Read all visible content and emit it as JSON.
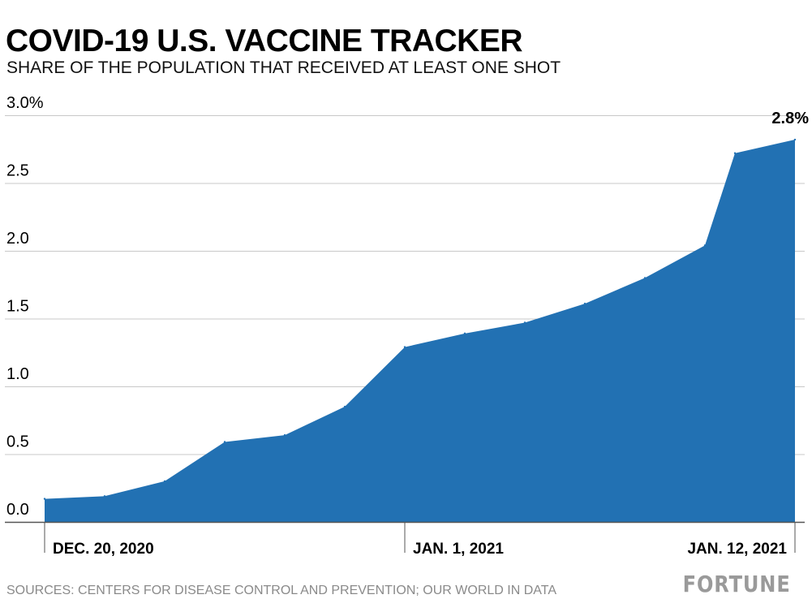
{
  "header": {
    "title": "COVID-19 U.S. VACCINE TRACKER",
    "subtitle": "SHARE OF THE POPULATION THAT RECEIVED AT LEAST ONE SHOT"
  },
  "footer": {
    "source": "SOURCES: CENTERS FOR DISEASE CONTROL AND PREVENTION; OUR WORLD IN DATA",
    "logo": "FORTUNE"
  },
  "colors": {
    "area": "#2271b3",
    "grid": "#c8c8c8",
    "axis": "#555555",
    "text": "#000000",
    "muted": "#8a8a8a"
  },
  "chart_data": {
    "type": "area",
    "x": [
      "2020-12-19",
      "2020-12-21",
      "2020-12-23",
      "2020-12-25",
      "2020-12-27",
      "2020-12-29",
      "2020-12-31",
      "2021-01-02",
      "2021-01-04",
      "2021-01-06",
      "2021-01-08",
      "2021-01-10",
      "2021-01-11",
      "2021-01-13"
    ],
    "values": [
      0.17,
      0.19,
      0.3,
      0.59,
      0.64,
      0.85,
      1.29,
      1.39,
      1.47,
      1.61,
      1.8,
      2.04,
      2.72,
      2.82
    ],
    "ylim": [
      0,
      3
    ],
    "yticks": [
      "3.0%",
      "2.5",
      "2.0",
      "1.5",
      "1.0",
      "0.5",
      "0.0"
    ],
    "ytick_values": [
      3,
      2.5,
      2,
      1.5,
      1,
      0.5,
      0
    ],
    "xticks": [
      {
        "date": "2020-12-19",
        "label": "DEC. 20, 2020"
      },
      {
        "date": "2020-12-31",
        "label": "JAN. 1, 2021"
      },
      {
        "date": "2021-01-13",
        "label": "JAN. 12, 2021"
      }
    ],
    "end_label": "2.8%",
    "grid": true,
    "legend": "none"
  }
}
